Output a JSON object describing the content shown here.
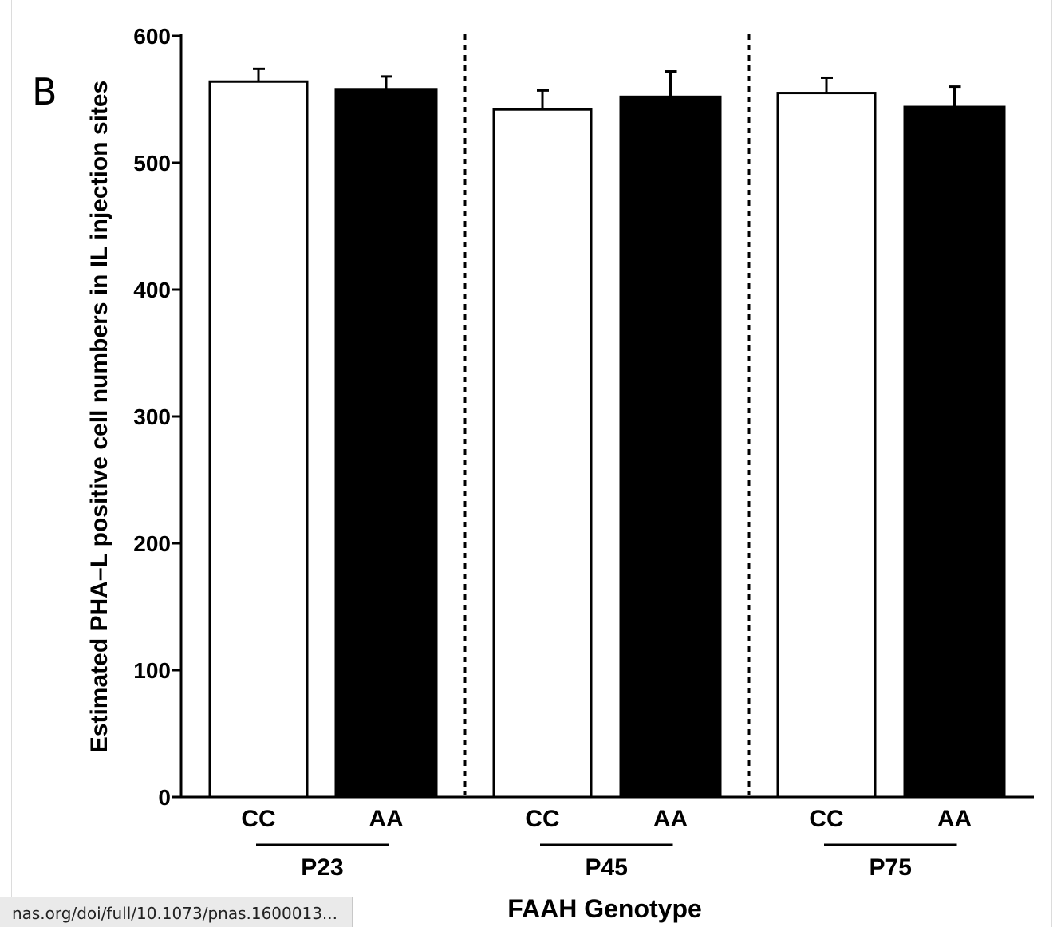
{
  "panel_label": "B",
  "status_bar": {
    "url": "nas.org/doi/full/10.1073/pnas.1600013..."
  },
  "colors": {
    "CC": "#ffffff",
    "AA": "#000000",
    "axis": "#000000"
  },
  "chart_data": {
    "type": "bar",
    "title": "",
    "xlabel": "FAAH Genotype",
    "ylabel": "Estimated PHA–L positive cell numbers in IL injection sites",
    "ylim": [
      0,
      600
    ],
    "yticks": [
      0,
      100,
      200,
      300,
      400,
      500,
      600
    ],
    "groups": [
      "P23",
      "P45",
      "P75"
    ],
    "categories": [
      "CC",
      "AA",
      "CC",
      "AA",
      "CC",
      "AA"
    ],
    "values": [
      564,
      558,
      542,
      552,
      555,
      544
    ],
    "errors": [
      10,
      10,
      15,
      20,
      12,
      16
    ],
    "group_separators": "dashed vertical lines",
    "grid": false,
    "legend": "none"
  }
}
